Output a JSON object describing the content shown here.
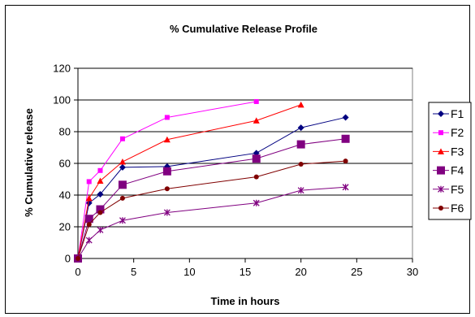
{
  "chart_data": {
    "type": "line",
    "title": "% Cumulative Release Profile",
    "xlabel": "Time in hours",
    "ylabel": "% Cumulative release",
    "xlim": [
      0,
      30
    ],
    "ylim": [
      0,
      120
    ],
    "xticks": [
      0,
      5,
      10,
      15,
      20,
      25,
      30
    ],
    "yticks": [
      0,
      20,
      40,
      60,
      80,
      100,
      120
    ],
    "grid": "horizontal",
    "legend": "right",
    "series": [
      {
        "name": "F1",
        "color": "#000080",
        "marker": "diamond",
        "x": [
          0,
          1,
          2,
          4,
          8,
          16,
          20,
          24
        ],
        "y": [
          0,
          35,
          40.5,
          57.5,
          58,
          66.5,
          82.5,
          89
        ]
      },
      {
        "name": "F2",
        "color": "#FF00FF",
        "marker": "square",
        "x": [
          0,
          1,
          2,
          4,
          8,
          16
        ],
        "y": [
          0,
          48.5,
          55.5,
          75.5,
          89,
          99
        ]
      },
      {
        "name": "F3",
        "color": "#FF0000",
        "marker": "triangle",
        "x": [
          0,
          1,
          2,
          4,
          8,
          16,
          20
        ],
        "y": [
          0,
          38,
          49,
          61,
          75,
          87,
          97
        ]
      },
      {
        "name": "F4",
        "color": "#800080",
        "marker": "bigsquare",
        "x": [
          0,
          1,
          2,
          4,
          8,
          16,
          20,
          24
        ],
        "y": [
          0,
          25,
          31,
          46.5,
          55,
          63,
          72,
          75.5
        ]
      },
      {
        "name": "F5",
        "color": "#800080",
        "marker": "star",
        "x": [
          0,
          1,
          2,
          4,
          8,
          16,
          20,
          24
        ],
        "y": [
          0,
          11.5,
          18,
          24,
          29,
          35,
          43,
          45
        ]
      },
      {
        "name": "F6",
        "color": "#800000",
        "marker": "circle",
        "x": [
          0,
          1,
          2,
          4,
          8,
          16,
          20,
          24
        ],
        "y": [
          0,
          21.5,
          29,
          38,
          44,
          51.5,
          59.5,
          61.5
        ]
      }
    ]
  }
}
